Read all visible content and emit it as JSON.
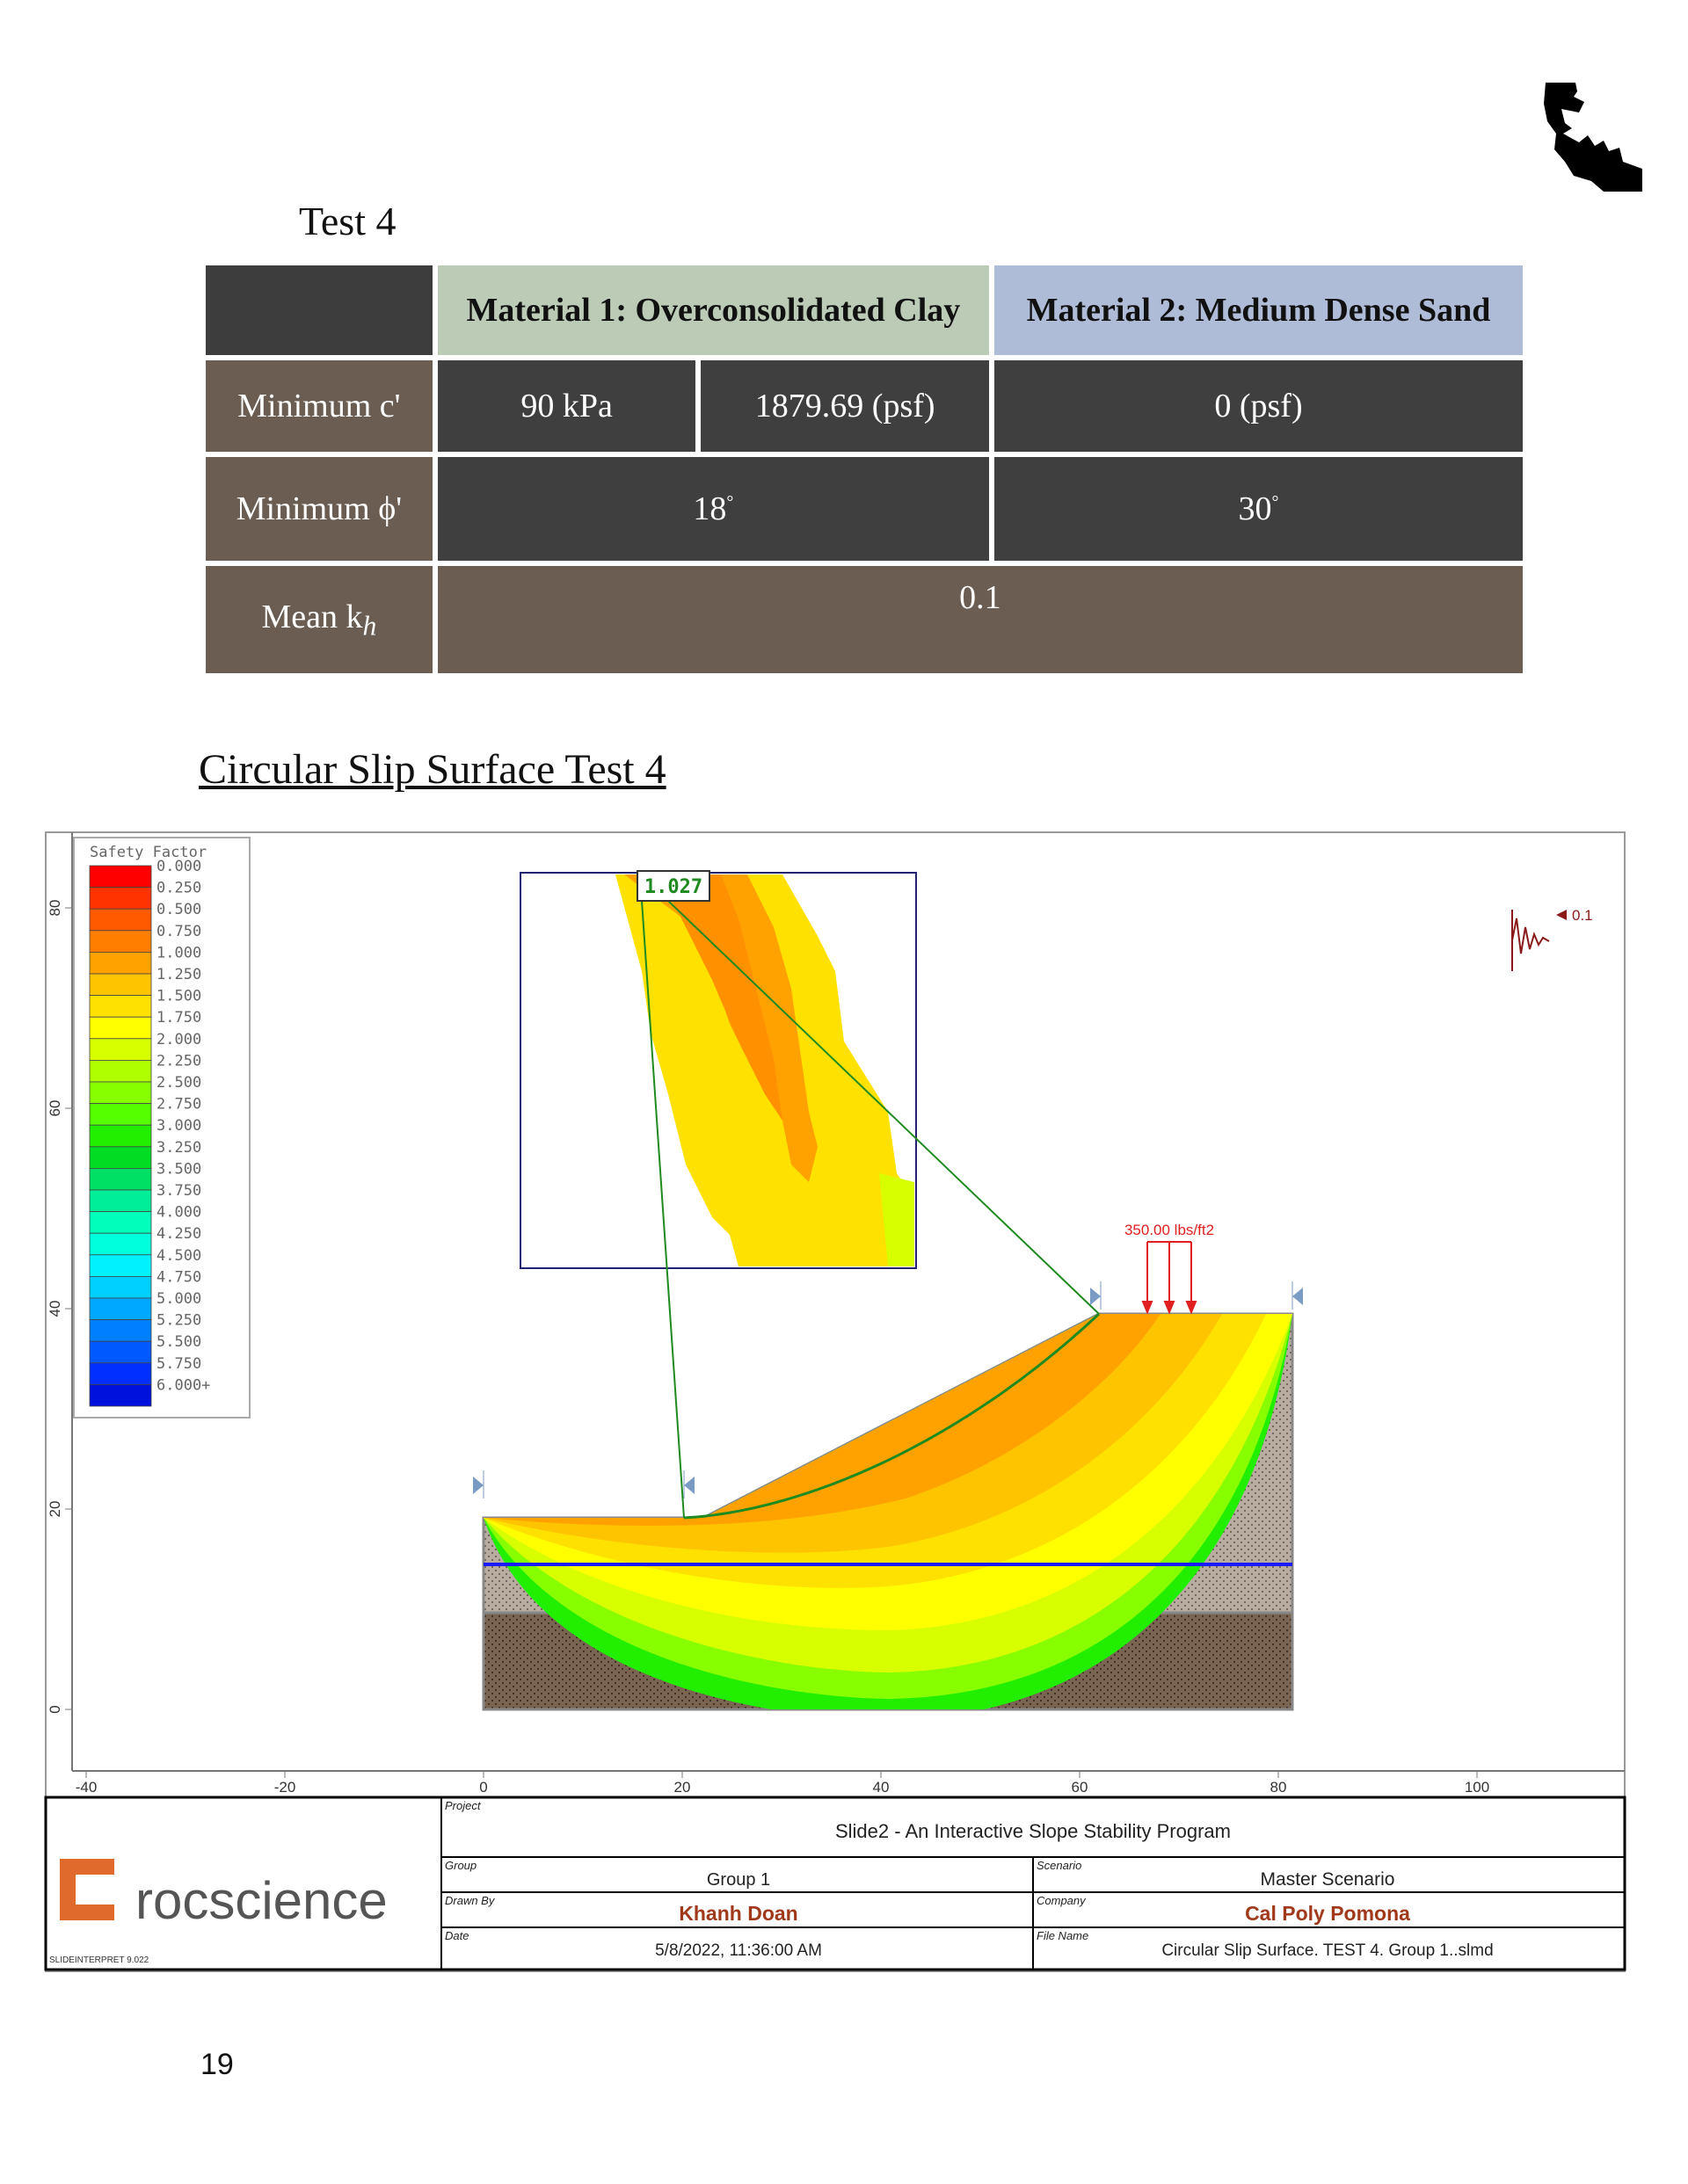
{
  "page": {
    "test_title": "Test 4",
    "section_title": "Circular Slip Surface Test 4",
    "page_number": "19"
  },
  "table": {
    "material1_header": "Material 1: Overconsolidated Clay",
    "material2_header": "Material 2: Medium Dense Sand",
    "row_c": {
      "label": "Minimum c'",
      "m1_kpa": "90 kPa",
      "m1_psf": "1879.69 (psf)",
      "m2": "0 (psf)"
    },
    "row_phi": {
      "label": "Minimum ϕ'",
      "m1": "18",
      "m2": "30",
      "unit": "°"
    },
    "row_kh": {
      "label": "Mean k",
      "label_sub": "h",
      "value": "0.1"
    }
  },
  "figure": {
    "legend_title": "Safety Factor",
    "legend_values": [
      "0.000",
      "0.250",
      "0.500",
      "0.750",
      "1.000",
      "1.250",
      "1.500",
      "1.750",
      "2.000",
      "2.250",
      "2.500",
      "2.750",
      "3.000",
      "3.250",
      "3.500",
      "3.750",
      "4.000",
      "4.250",
      "4.500",
      "4.750",
      "5.000",
      "5.250",
      "5.500",
      "5.750",
      "6.000+"
    ],
    "legend_colors": [
      "#ff0000",
      "#ff3300",
      "#ff5a00",
      "#ff7e00",
      "#ffa200",
      "#ffc400",
      "#ffe100",
      "#ffff00",
      "#d8ff00",
      "#b0ff00",
      "#88ff00",
      "#55ff00",
      "#22ee00",
      "#00dd22",
      "#00e065",
      "#00ee99",
      "#00ffbb",
      "#00ffdd",
      "#00f2ff",
      "#00d0ff",
      "#00a8ff",
      "#0080ff",
      "#0058ff",
      "#0030ff",
      "#0010dd"
    ],
    "fs_value": "1.027",
    "seismic_value": "0.1",
    "load_label": "350.00 lbs/ft2",
    "y_ticks": [
      "0",
      "20",
      "40",
      "60",
      "80"
    ],
    "x_ticks": [
      "-40",
      "-20",
      "0",
      "20",
      "40",
      "60",
      "80",
      "100"
    ]
  },
  "title_block": {
    "brand": "rocscience",
    "version": "SLIDEINTERPRET 9.022",
    "project_label": "Project",
    "project": "Slide2 - An Interactive Slope Stability Program",
    "group_label": "Group",
    "group": "Group 1",
    "scenario_label": "Scenario",
    "scenario": "Master Scenario",
    "drawn_by_label": "Drawn By",
    "drawn_by": "Khanh Doan",
    "company_label": "Company",
    "company": "Cal Poly Pomona",
    "date_label": "Date",
    "date": "5/8/2022, 11:36:00 AM",
    "file_label": "File Name",
    "file": "Circular Slip Surface. TEST 4. Group 1..slmd"
  }
}
